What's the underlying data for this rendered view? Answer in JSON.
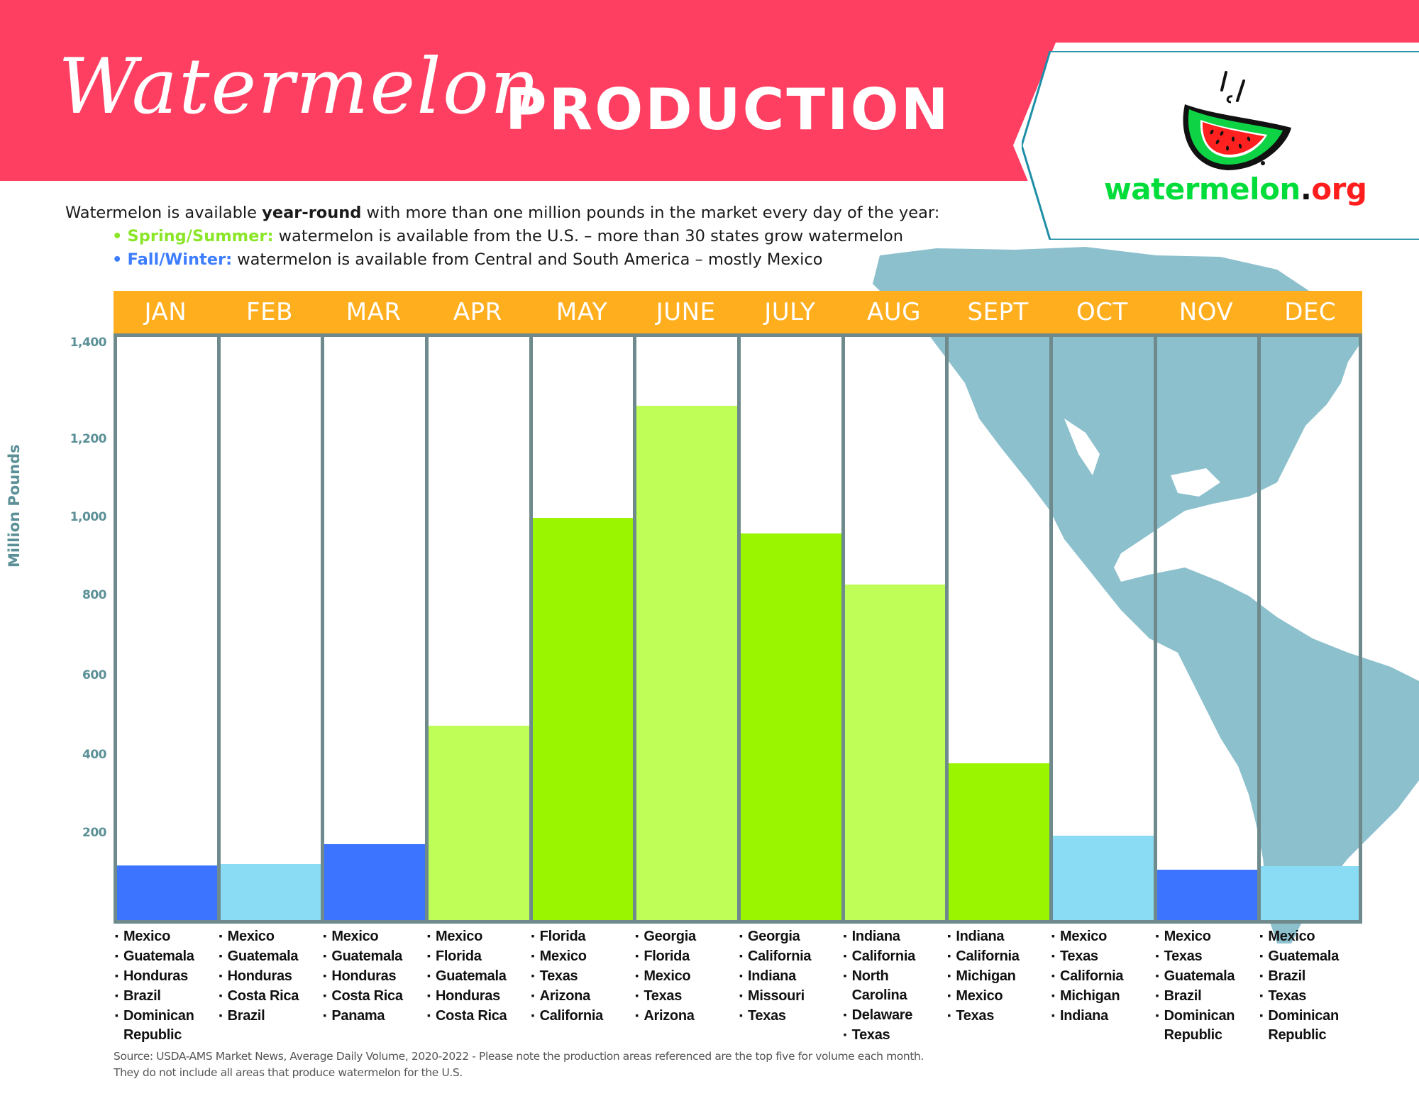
{
  "header": {
    "title_script": "Watermelon",
    "title_bold": "PRODUCTION",
    "banner_color": "#ff3f62"
  },
  "logo": {
    "name_green": "watermelon",
    "dot": ".",
    "name_red": "org",
    "icon": "watermelon-slice-icon"
  },
  "intro": {
    "line1_pre": "Watermelon is available ",
    "line1_bold": "year-round",
    "line1_post": " with more than one million pounds in the market every day of the year:",
    "spring_label": "Spring/Summer:",
    "spring_text": " watermelon is available from the U.S. – more than 30 states grow watermelon",
    "fall_label": "Fall/Winter:",
    "fall_text": " watermelon is available from Central and South America – mostly Mexico",
    "bullet": "•"
  },
  "colors": {
    "header_orange": "#ffae1e",
    "bar_dark_blue": "#3d74ff",
    "bar_light_blue": "#8adcf5",
    "bar_dark_green": "#99f500",
    "bar_light_green": "#bffe56",
    "grid": "#6e8a8c",
    "map": "#8cc0cd",
    "axis_text": "#5b9097"
  },
  "chart_data": {
    "type": "bar",
    "title": "Watermelon PRODUCTION",
    "xlabel": "",
    "ylabel": "Million Pounds",
    "categories": [
      "JAN",
      "FEB",
      "MAR",
      "APR",
      "MAY",
      "JUNE",
      "JULY",
      "AUG",
      "SEPT",
      "OCT",
      "NOV",
      "DEC"
    ],
    "values": [
      127,
      130,
      175,
      475,
      1000,
      1270,
      960,
      830,
      380,
      195,
      117,
      125
    ],
    "bar_colors": [
      "#3d74ff",
      "#8adcf5",
      "#3d74ff",
      "#bffe56",
      "#99f500",
      "#bffe56",
      "#99f500",
      "#bffe56",
      "#99f500",
      "#8adcf5",
      "#3d74ff",
      "#8adcf5"
    ],
    "yticks": [
      "1,400",
      "1,200",
      "1,000",
      "800",
      "600",
      "400",
      "200"
    ],
    "ylim": [
      0,
      1400
    ],
    "grid": false,
    "legend": "none",
    "top_regions": [
      [
        "Mexico",
        "Guatemala",
        "Honduras",
        "Brazil",
        "Dominican Republic"
      ],
      [
        "Mexico",
        "Guatemala",
        "Honduras",
        "Costa Rica",
        "Brazil"
      ],
      [
        "Mexico",
        "Guatemala",
        "Honduras",
        "Costa Rica",
        "Panama"
      ],
      [
        "Mexico",
        "Florida",
        "Guatemala",
        "Honduras",
        "Costa Rica"
      ],
      [
        "Florida",
        "Mexico",
        "Texas",
        "Arizona",
        "California"
      ],
      [
        "Georgia",
        "Florida",
        "Mexico",
        "Texas",
        "Arizona"
      ],
      [
        "Georgia",
        "California",
        "Indiana",
        "Missouri",
        "Texas"
      ],
      [
        "Indiana",
        "California",
        "North Carolina",
        "Delaware",
        "Texas"
      ],
      [
        "Indiana",
        "California",
        "Michigan",
        "Mexico",
        "Texas"
      ],
      [
        "Mexico",
        "Texas",
        "California",
        "Michigan",
        "Indiana"
      ],
      [
        "Mexico",
        "Texas",
        "Guatemala",
        "Brazil",
        "Dominican Republic"
      ],
      [
        "Mexico",
        "Guatemala",
        "Brazil",
        "Texas",
        "Dominican Republic"
      ]
    ]
  },
  "footer": {
    "source_line1": "Source: USDA-AMS Market News, Average Daily Volume, 2020-2022 - Please note the production areas referenced are the top five for volume each month.",
    "source_line2": "They do not include all areas that produce watermelon for the U.S."
  }
}
